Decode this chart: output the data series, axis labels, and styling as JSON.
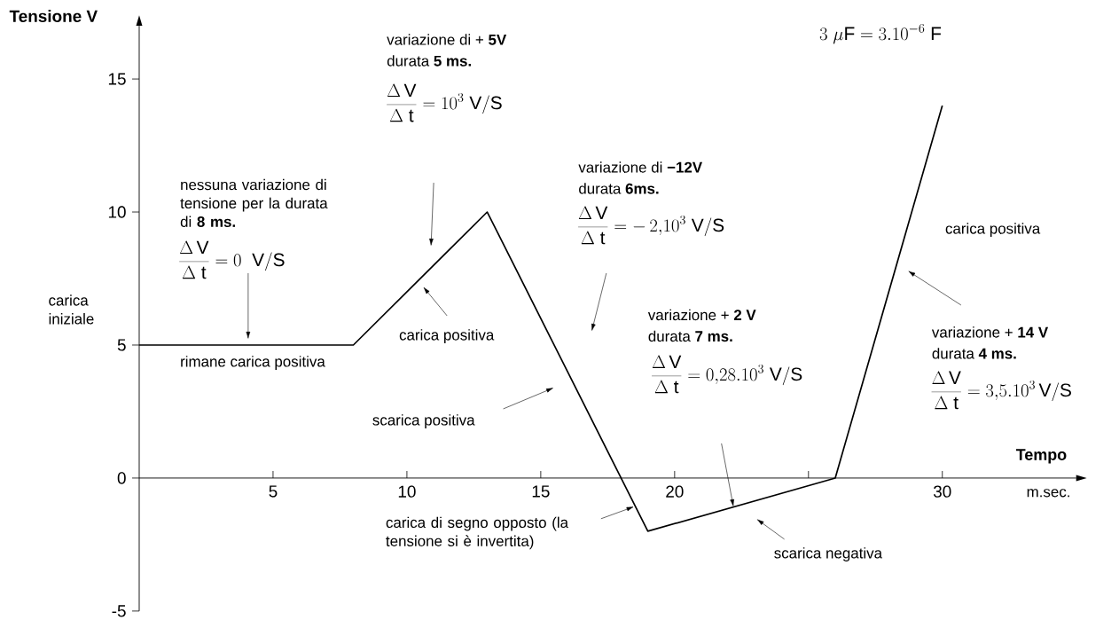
{
  "chart_data": {
    "type": "line",
    "xlabel": "Tempo",
    "ylabel": "Tensione  V",
    "x": [
      0,
      8,
      13,
      19,
      26,
      30
    ],
    "series": [
      {
        "color": "#000000",
        "values": [
          5,
          5,
          10,
          -2,
          0,
          14
        ]
      }
    ],
    "xlim": [
      0,
      35
    ],
    "ylim": [
      -5,
      17
    ],
    "xticks": [
      5,
      10,
      15,
      20,
      {
        "value": 25,
        "label": null
      },
      30
    ],
    "yticks": [
      -5,
      0,
      5,
      10,
      15
    ],
    "annotations": [
      "carica iniziale",
      "nessuna variazione di tensione per la durata di **8 ms.**",
      "\\frac{\\Delta\\,\\mathrm{V}}{\\Delta\\ \\mathrm{t}} = 0\\ \\ \\mathrm{V/S}",
      "rimane carica positiva",
      "variazione di + **5V**",
      "durata  **5 ms.**",
      "\\frac{\\Delta\\,\\mathrm{V}}{\\Delta\\ \\mathrm{t}} = 10^{3}\\ \\mathrm{V/S}",
      "carica positiva",
      "variazione di  **−12V**",
      "durata **6ms.**",
      "\\frac{\\Delta\\,\\mathrm{V}}{\\Delta\\ \\mathrm{t}} = -\\,2{,}10^{3}\\ \\mathrm{V/S}",
      "scarica positiva",
      "carica di segno opposto (la tensione si è invertita)",
      "variazione + **2 V**",
      "durata **7 ms.**",
      "\\frac{\\Delta\\,\\mathrm{V}}{\\Delta\\ \\mathrm{t}} = 0{,}28.10^{3}\\ \\mathrm{V/S}",
      "scarica negativa",
      "carica positiva",
      "variazione + **14 V**",
      "durata **4 ms.**",
      "\\frac{\\Delta\\,\\mathrm{V}}{\\Delta\\ \\mathrm{t}} = 3{,}5.10^{3}\\,\\mathrm{V/S}",
      "3\\ \\mu\\mathrm{F} = 3.10^{-6}\\ \\mathrm{F}",
      "m.sec."
    ]
  }
}
